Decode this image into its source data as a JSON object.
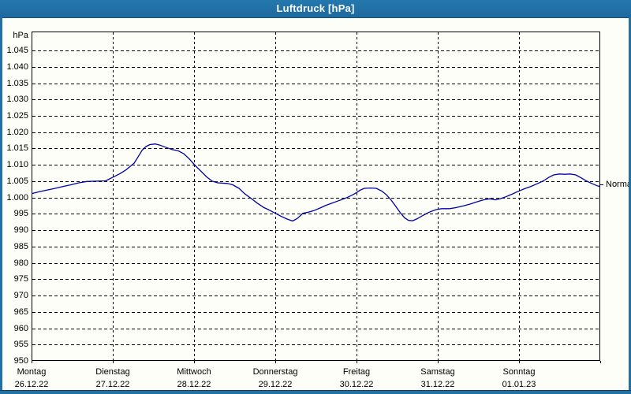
{
  "window": {
    "title": "Luftdruck [hPa]"
  },
  "colors": {
    "titlebar": "#2171a5",
    "page_border": "#2171a5",
    "background": "#fdfef8",
    "grid": "#000000",
    "curve": "#0000a8",
    "text": "#000000"
  },
  "chart_data": {
    "type": "line",
    "title": "Luftdruck [hPa]",
    "unit_label": "hPa",
    "ylabel": "hPa",
    "xlabel": "",
    "ylim": [
      950,
      1050.8
    ],
    "grid": "dashed",
    "yticks": [
      {
        "value": 1045,
        "label": "1.045"
      },
      {
        "value": 1040,
        "label": "1.040"
      },
      {
        "value": 1035,
        "label": "1.035"
      },
      {
        "value": 1030,
        "label": "1.030"
      },
      {
        "value": 1025,
        "label": "1.025"
      },
      {
        "value": 1020,
        "label": "1.020"
      },
      {
        "value": 1015,
        "label": "1.015"
      },
      {
        "value": 1010,
        "label": "1.010"
      },
      {
        "value": 1005,
        "label": "1.005"
      },
      {
        "value": 1000,
        "label": "1.000"
      },
      {
        "value": 995,
        "label": "995"
      },
      {
        "value": 990,
        "label": "990"
      },
      {
        "value": 985,
        "label": "985"
      },
      {
        "value": 980,
        "label": "980"
      },
      {
        "value": 975,
        "label": "975"
      },
      {
        "value": 970,
        "label": "970"
      },
      {
        "value": 965,
        "label": "965"
      },
      {
        "value": 960,
        "label": "960"
      },
      {
        "value": 955,
        "label": "955"
      },
      {
        "value": 950,
        "label": "950"
      }
    ],
    "xticks": [
      {
        "day": "Montag",
        "date": "26.12.22"
      },
      {
        "day": "Dienstag",
        "date": "27.12.22"
      },
      {
        "day": "Mittwoch",
        "date": "28.12.22"
      },
      {
        "day": "Donnerstag",
        "date": "29.12.22"
      },
      {
        "day": "Freitag",
        "date": "30.12.22"
      },
      {
        "day": "Samstag",
        "date": "31.12.22"
      },
      {
        "day": "Sonntag",
        "date": "01.01.23"
      }
    ],
    "normal_marker": {
      "label": "Normal",
      "value": 1004
    },
    "series": [
      {
        "name": "Luftdruck",
        "color": "#0000a8",
        "points": [
          [
            0.0,
            1001.2
          ],
          [
            0.097,
            1001.8
          ],
          [
            0.194,
            1002.3
          ],
          [
            0.291,
            1002.8
          ],
          [
            0.388,
            1003.4
          ],
          [
            0.485,
            1003.9
          ],
          [
            0.583,
            1004.5
          ],
          [
            0.68,
            1004.9
          ],
          [
            0.796,
            1005.0
          ],
          [
            0.913,
            1005.1
          ],
          [
            1.0,
            1006.2
          ],
          [
            1.087,
            1007.3
          ],
          [
            1.165,
            1008.5
          ],
          [
            1.262,
            1010.5
          ],
          [
            1.311,
            1012.4
          ],
          [
            1.359,
            1014.4
          ],
          [
            1.408,
            1015.6
          ],
          [
            1.456,
            1016.2
          ],
          [
            1.524,
            1016.4
          ],
          [
            1.583,
            1016.0
          ],
          [
            1.65,
            1015.4
          ],
          [
            1.728,
            1014.7
          ],
          [
            1.806,
            1014.3
          ],
          [
            1.874,
            1013.4
          ],
          [
            1.942,
            1011.8
          ],
          [
            2.01,
            1009.9
          ],
          [
            2.087,
            1008.0
          ],
          [
            2.155,
            1006.3
          ],
          [
            2.223,
            1005.0
          ],
          [
            2.291,
            1004.5
          ],
          [
            2.408,
            1004.3
          ],
          [
            2.476,
            1003.9
          ],
          [
            2.553,
            1002.8
          ],
          [
            2.621,
            1001.2
          ],
          [
            2.699,
            999.8
          ],
          [
            2.777,
            998.3
          ],
          [
            2.854,
            997.0
          ],
          [
            2.922,
            996.2
          ],
          [
            2.99,
            995.3
          ],
          [
            3.068,
            994.3
          ],
          [
            3.146,
            993.4
          ],
          [
            3.214,
            992.8
          ],
          [
            3.272,
            993.6
          ],
          [
            3.34,
            995.2
          ],
          [
            3.408,
            995.5
          ],
          [
            3.476,
            996.0
          ],
          [
            3.553,
            996.8
          ],
          [
            3.621,
            997.6
          ],
          [
            3.689,
            998.2
          ],
          [
            3.767,
            998.9
          ],
          [
            3.835,
            999.5
          ],
          [
            3.893,
            1000.1
          ],
          [
            3.951,
            1000.8
          ],
          [
            4.0,
            1001.5
          ],
          [
            4.049,
            1002.3
          ],
          [
            4.097,
            1002.8
          ],
          [
            4.175,
            1002.9
          ],
          [
            4.243,
            1002.8
          ],
          [
            4.311,
            1002.0
          ],
          [
            4.369,
            1000.8
          ],
          [
            4.427,
            999.2
          ],
          [
            4.485,
            997.2
          ],
          [
            4.544,
            995.2
          ],
          [
            4.592,
            993.8
          ],
          [
            4.641,
            993.0
          ],
          [
            4.689,
            992.9
          ],
          [
            4.748,
            993.5
          ],
          [
            4.816,
            994.5
          ],
          [
            4.893,
            995.5
          ],
          [
            4.981,
            996.3
          ],
          [
            5.049,
            996.6
          ],
          [
            5.146,
            996.6
          ],
          [
            5.223,
            996.9
          ],
          [
            5.311,
            997.4
          ],
          [
            5.398,
            998.0
          ],
          [
            5.485,
            998.7
          ],
          [
            5.563,
            999.3
          ],
          [
            5.641,
            999.6
          ],
          [
            5.709,
            999.3
          ],
          [
            5.767,
            999.6
          ],
          [
            5.835,
            1000.2
          ],
          [
            5.913,
            1001.0
          ],
          [
            5.99,
            1001.9
          ],
          [
            6.068,
            1002.7
          ],
          [
            6.146,
            1003.4
          ],
          [
            6.223,
            1004.2
          ],
          [
            6.301,
            1005.1
          ],
          [
            6.369,
            1006.2
          ],
          [
            6.427,
            1006.9
          ],
          [
            6.495,
            1007.2
          ],
          [
            6.563,
            1007.1
          ],
          [
            6.631,
            1007.2
          ],
          [
            6.699,
            1006.9
          ],
          [
            6.767,
            1006.0
          ],
          [
            6.835,
            1005.0
          ],
          [
            6.903,
            1004.2
          ],
          [
            6.961,
            1003.6
          ],
          [
            7.0,
            1003.4
          ]
        ]
      }
    ]
  }
}
